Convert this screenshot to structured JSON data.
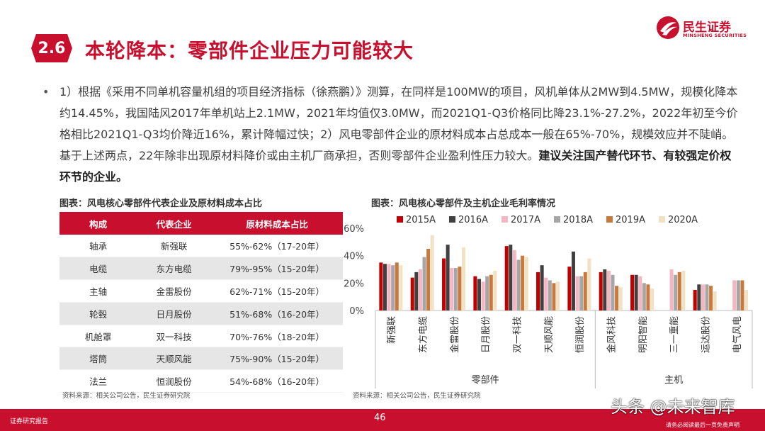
{
  "header": {
    "badge": "2.6",
    "title": "本轮降本：零部件企业压力可能较大",
    "logo_cn": "民生证券",
    "logo_en": "MINSHENG SECURITIES",
    "accent": "#c8102e"
  },
  "bullet": {
    "dot": "•",
    "text": "1）根据《采用不同单机容量机组的项目经济指标（徐燕鹏）》测算，在同样是100MW的项目，风机单体从2MW到4.5MW，规模化降本约14.45%，我国陆风2017年单机站上2.1MW，2021年均值仅3.0MW，而2021Q1-Q3价格同比降23.1%-27.2%，2022年初至今价格相比2021Q1-Q3均价降近16%，累计降幅过快；2）风电零部件企业的原材料成本占总成本一般在65%-70%，规模效应并不陡峭。基于上述两点，22年除非出现原材料降价或由主机厂商承担，否则零部件企业盈利性压力较大。",
    "bold": "建议关注国产替代环节、有较强定价权环节的企业。"
  },
  "table": {
    "title": "图表：风电核心零部件代表企业及原材料成本占比",
    "headers": [
      "构成",
      "代表企业",
      "原材料成本占比"
    ],
    "rows": [
      [
        "轴承",
        "新强联",
        "55%-62%（17-20年）"
      ],
      [
        "电缆",
        "东方电缆",
        "79%-95%（15-20年）"
      ],
      [
        "主轴",
        "金雷股份",
        "62%-71%（15-20年）"
      ],
      [
        "轮毂",
        "日月股份",
        "51%-68%（16-20年）"
      ],
      [
        "机舱罩",
        "双一科技",
        "70%-76%（18-20年）"
      ],
      [
        "塔筒",
        "天顺风能",
        "75%-90%（15-20年）"
      ],
      [
        "法兰",
        "恒润股份",
        "54%-68%（16-20年）"
      ]
    ],
    "source": "资料来源：相关公司公告，民生证券研究院"
  },
  "chart_title": "图表：风电核心零部件及主机企业毛利率情况",
  "chart_source": "资料来源：相关公司公告，民生证券研究院",
  "chart_data": {
    "type": "bar",
    "categories": [
      "新强联",
      "东方电缆",
      "金雷股份",
      "日月股份",
      "双一科技",
      "天顺风能",
      "恒润股份",
      "金风科技",
      "明阳智能",
      "三一重能",
      "运达股份",
      "电气风电"
    ],
    "groups": [
      {
        "label": "零部件",
        "from": 0,
        "to": 6
      },
      {
        "label": "主机",
        "from": 7,
        "to": 11
      }
    ],
    "series": [
      {
        "name": "2015A",
        "color": "#c00000",
        "values": [
          35,
          24,
          38,
          25,
          47,
          28,
          32,
          28,
          26,
          null,
          15,
          null
        ]
      },
      {
        "name": "2016A",
        "color": "#404040",
        "values": [
          34,
          28,
          48,
          23,
          48,
          33,
          43,
          30,
          26,
          null,
          19,
          null
        ]
      },
      {
        "name": "2017A",
        "color": "#f4b6c2",
        "values": [
          34,
          30,
          31,
          21,
          44,
          24,
          25,
          29,
          25,
          30,
          19,
          22
        ]
      },
      {
        "name": "2018A",
        "color": "#a6a6a6",
        "values": [
          33,
          39,
          31,
          25,
          37,
          22,
          25,
          26,
          20,
          26,
          19,
          22
        ]
      },
      {
        "name": "2019A",
        "color": "#c87a3e",
        "values": [
          35,
          45,
          32,
          26,
          40,
          20,
          28,
          18,
          19,
          28,
          18,
          22
        ]
      },
      {
        "name": "2020A",
        "color": "#f2e2c4",
        "values": [
          33,
          55,
          46,
          29,
          39,
          21,
          38,
          17,
          16,
          29,
          14,
          15
        ]
      }
    ],
    "y_ticks": [
      "0%",
      "20%",
      "40%",
      "60%"
    ],
    "ylim": [
      0,
      60
    ]
  },
  "footer": {
    "left": "证券研究报告",
    "page": "46",
    "right": "请务必阅读最后一页免责声明",
    "watermark": "头条 @未来智库"
  }
}
